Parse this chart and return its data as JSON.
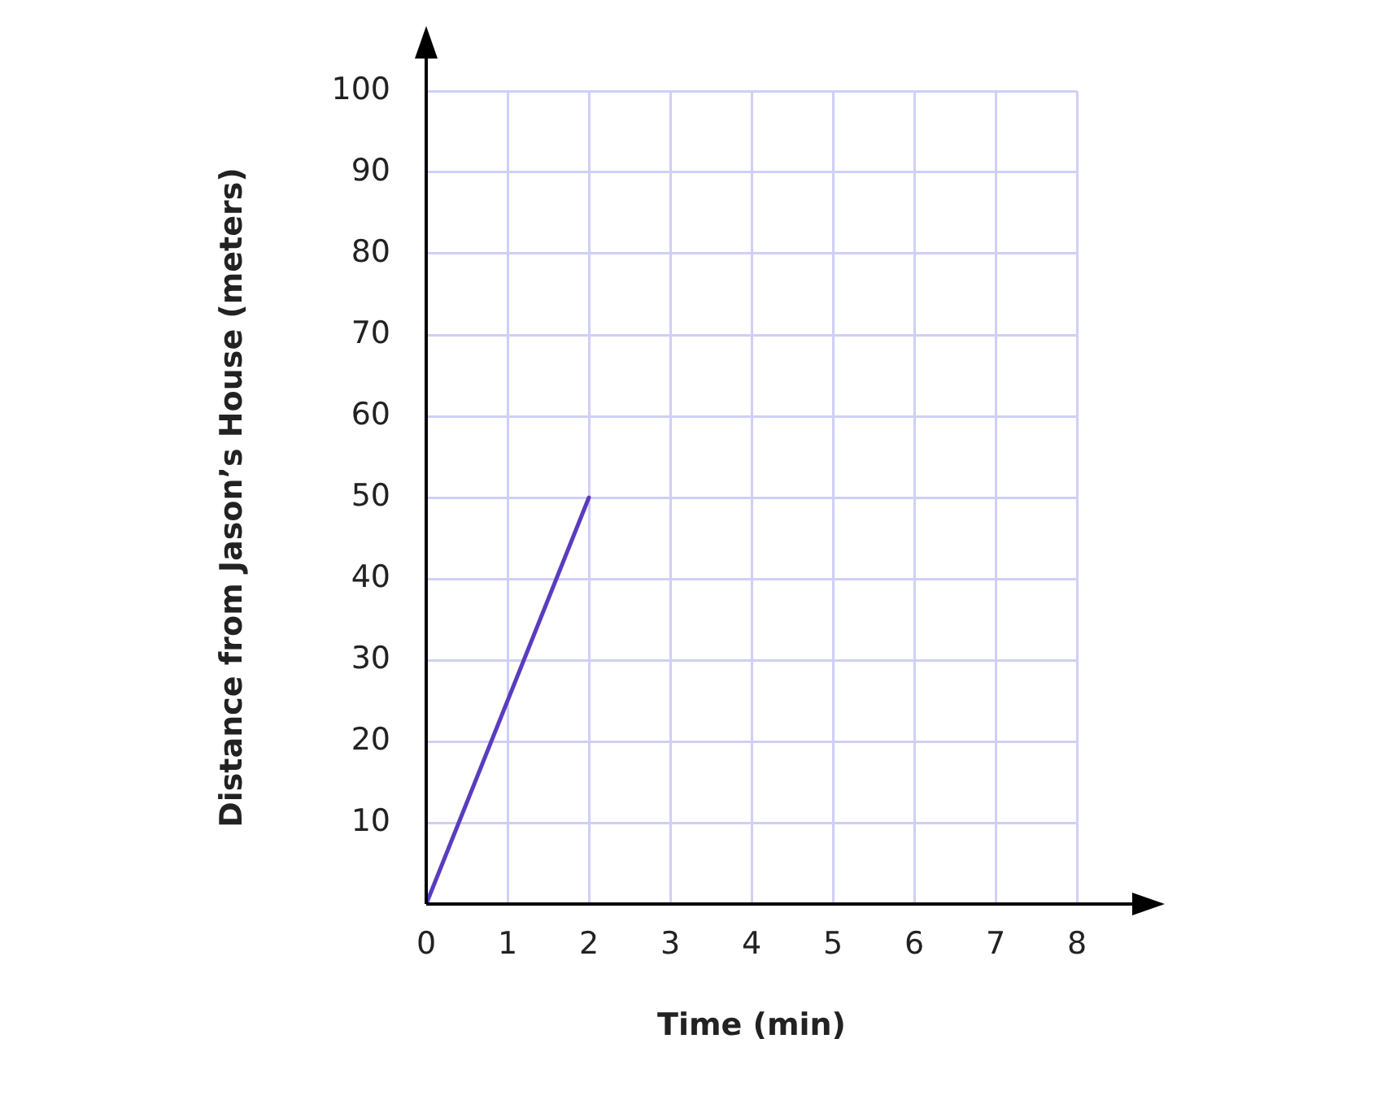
{
  "chart_data": {
    "type": "line",
    "xlabel": "Time (min)",
    "ylabel": "Distance from Jason’s House (meters)",
    "series": [
      {
        "color": "#5a3cbf",
        "x": [
          0,
          2
        ],
        "values": [
          0,
          50
        ]
      }
    ],
    "xlim": [
      0,
      8
    ],
    "xticks": [
      0,
      1,
      2,
      3,
      4,
      5,
      6,
      7,
      8
    ],
    "ylim": [
      0,
      100
    ],
    "yticks": [
      {
        "value": 0,
        "label": null
      },
      10,
      20,
      30,
      40,
      50,
      60,
      70,
      80,
      90,
      100
    ],
    "grid": true,
    "legend": false,
    "marker": "none",
    "line_style": "solid"
  }
}
